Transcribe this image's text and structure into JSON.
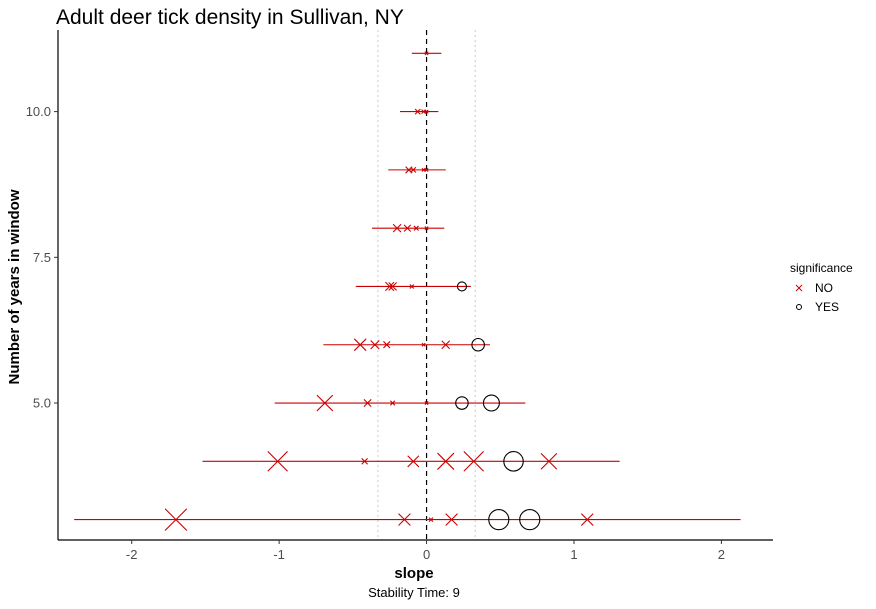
{
  "chart_data": {
    "type": "scatter",
    "title": "Adult deer tick density in Sullivan, NY",
    "xlabel": "slope",
    "ylabel": "Number of years in window",
    "caption": "Stability Time: 9",
    "xlim": [
      -2.5,
      2.35
    ],
    "ylim": [
      2.65,
      11.4
    ],
    "x_ticks": [
      -2,
      -1,
      0,
      1,
      2
    ],
    "x_tick_labels": [
      "-2",
      "-1",
      "0",
      "1",
      "2"
    ],
    "y_ticks": [
      5.0,
      7.5,
      10.0
    ],
    "y_tick_labels": [
      "5.0",
      "7.5",
      "10.0"
    ],
    "reference_lines": {
      "zero_dashed": 0,
      "dotted": [
        -0.33,
        0.33
      ]
    },
    "grid": false,
    "legend": {
      "title": "significance",
      "position": "right",
      "entries": [
        {
          "label": "NO",
          "marker": "x",
          "color": "#cc0000"
        },
        {
          "label": "YES",
          "marker": "circle",
          "color": "#000000"
        }
      ]
    },
    "colors": {
      "no": "#cc0000",
      "yes": "#000000",
      "axis": "#000000",
      "ticks": "#4d4d4d",
      "dotted": "#cccccc"
    },
    "rows": [
      {
        "years": 11,
        "xmin": -0.1,
        "xmax": 0.1,
        "points": [
          {
            "slope": 0.0,
            "sig": "NO",
            "size": 0.5
          }
        ]
      },
      {
        "years": 10,
        "xmin": -0.18,
        "xmax": 0.08,
        "points": [
          {
            "slope": -0.06,
            "sig": "NO",
            "size": 0.8
          },
          {
            "slope": -0.02,
            "sig": "NO",
            "size": 0.6
          },
          {
            "slope": 0.0,
            "sig": "NO",
            "size": 0.5
          }
        ]
      },
      {
        "years": 9,
        "xmin": -0.26,
        "xmax": 0.13,
        "points": [
          {
            "slope": -0.12,
            "sig": "NO",
            "size": 1.0
          },
          {
            "slope": -0.09,
            "sig": "NO",
            "size": 0.8
          },
          {
            "slope": -0.02,
            "sig": "NO",
            "size": 0.5
          },
          {
            "slope": 0.0,
            "sig": "NO",
            "size": 0.5
          }
        ]
      },
      {
        "years": 8,
        "xmin": -0.37,
        "xmax": 0.12,
        "points": [
          {
            "slope": -0.2,
            "sig": "NO",
            "size": 1.2
          },
          {
            "slope": -0.13,
            "sig": "NO",
            "size": 1.0
          },
          {
            "slope": -0.07,
            "sig": "NO",
            "size": 0.7
          },
          {
            "slope": 0.0,
            "sig": "NO",
            "size": 0.5
          }
        ]
      },
      {
        "years": 7,
        "xmin": -0.48,
        "xmax": 0.3,
        "points": [
          {
            "slope": -0.25,
            "sig": "NO",
            "size": 1.3
          },
          {
            "slope": -0.23,
            "sig": "NO",
            "size": 1.2
          },
          {
            "slope": -0.1,
            "sig": "NO",
            "size": 0.6
          },
          {
            "slope": 0.24,
            "sig": "YES",
            "size": 1.3
          }
        ]
      },
      {
        "years": 6,
        "xmin": -0.7,
        "xmax": 0.43,
        "points": [
          {
            "slope": -0.45,
            "sig": "NO",
            "size": 1.8
          },
          {
            "slope": -0.35,
            "sig": "NO",
            "size": 1.3
          },
          {
            "slope": -0.27,
            "sig": "NO",
            "size": 1.0
          },
          {
            "slope": -0.02,
            "sig": "NO",
            "size": 0.5
          },
          {
            "slope": 0.13,
            "sig": "NO",
            "size": 1.2
          },
          {
            "slope": 0.35,
            "sig": "YES",
            "size": 1.8
          }
        ]
      },
      {
        "years": 5,
        "xmin": -1.03,
        "xmax": 0.67,
        "points": [
          {
            "slope": -0.69,
            "sig": "NO",
            "size": 2.4
          },
          {
            "slope": -0.4,
            "sig": "NO",
            "size": 1.1
          },
          {
            "slope": -0.23,
            "sig": "NO",
            "size": 0.7
          },
          {
            "slope": 0.0,
            "sig": "NO",
            "size": 0.5
          },
          {
            "slope": 0.24,
            "sig": "YES",
            "size": 1.8
          },
          {
            "slope": 0.44,
            "sig": "YES",
            "size": 2.3
          }
        ]
      },
      {
        "years": 4,
        "xmin": -1.52,
        "xmax": 1.31,
        "points": [
          {
            "slope": -1.01,
            "sig": "NO",
            "size": 3.0
          },
          {
            "slope": -0.42,
            "sig": "NO",
            "size": 0.9
          },
          {
            "slope": -0.09,
            "sig": "NO",
            "size": 1.7
          },
          {
            "slope": 0.13,
            "sig": "NO",
            "size": 2.5
          },
          {
            "slope": 0.32,
            "sig": "NO",
            "size": 3.0
          },
          {
            "slope": 0.59,
            "sig": "YES",
            "size": 2.8
          },
          {
            "slope": 0.83,
            "sig": "NO",
            "size": 2.4
          }
        ]
      },
      {
        "years": 3,
        "xmin": -2.39,
        "xmax": 2.13,
        "points": [
          {
            "slope": -1.7,
            "sig": "NO",
            "size": 3.3
          },
          {
            "slope": -0.15,
            "sig": "NO",
            "size": 1.8
          },
          {
            "slope": 0.03,
            "sig": "NO",
            "size": 0.6
          },
          {
            "slope": 0.17,
            "sig": "NO",
            "size": 1.8
          },
          {
            "slope": 0.49,
            "sig": "YES",
            "size": 2.9
          },
          {
            "slope": 0.7,
            "sig": "YES",
            "size": 2.9
          },
          {
            "slope": 1.09,
            "sig": "NO",
            "size": 1.8
          }
        ]
      }
    ]
  }
}
